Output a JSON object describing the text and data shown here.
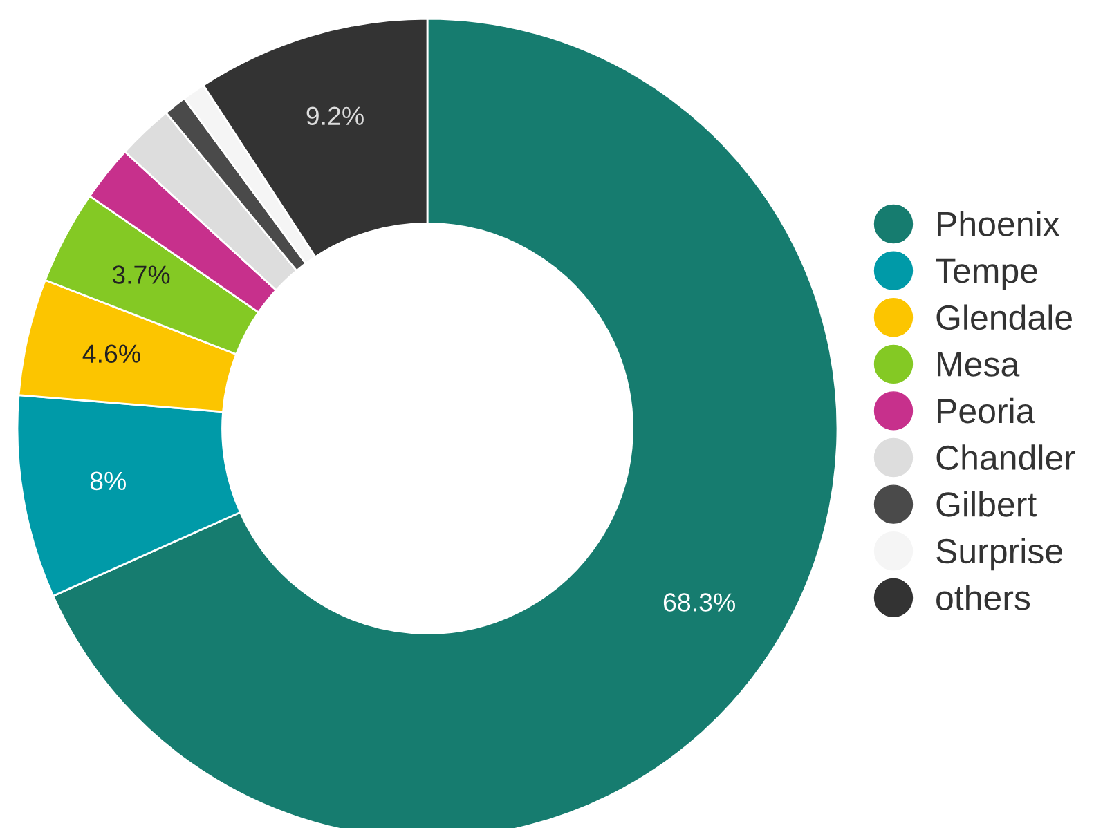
{
  "chart_data": {
    "type": "donut",
    "categories": [
      "Phoenix",
      "Tempe",
      "Glendale",
      "Mesa",
      "Peoria",
      "Chandler",
      "Gilbert",
      "Surprise",
      "others"
    ],
    "values": [
      68.3,
      8,
      4.6,
      3.7,
      2.2,
      2.2,
      0.9,
      0.9,
      9.2
    ],
    "colors": [
      "#167c6f",
      "#009aa8",
      "#fcc500",
      "#84c924",
      "#c7308c",
      "#dddddd",
      "#4a4a4a",
      "#f5f5f5",
      "#333333"
    ],
    "value_labels": [
      "68.3%",
      "8%",
      "4.6%",
      "3.7%",
      null,
      null,
      null,
      null,
      "9.2%"
    ],
    "legend": "right"
  }
}
